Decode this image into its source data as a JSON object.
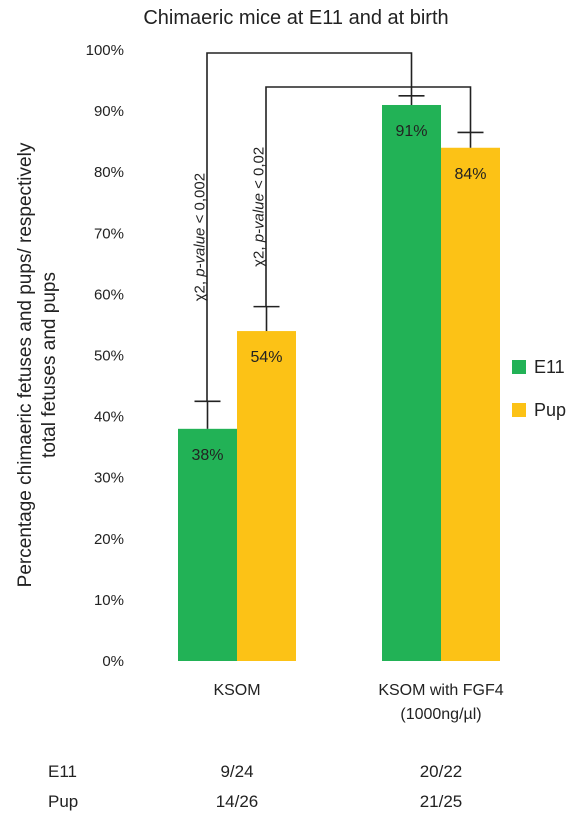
{
  "chart_data": {
    "type": "bar",
    "title": "Chimaeric mice at E11 and at birth",
    "ylabel_line1": "Percentage  chimaeric fetuses and pups/ respectively",
    "ylabel_line2": "total fetuses and pups",
    "ylim": [
      0,
      100
    ],
    "yticks": [
      "0%",
      "10%",
      "20%",
      "30%",
      "40%",
      "50%",
      "60%",
      "70%",
      "80%",
      "90%",
      "100%"
    ],
    "categories": [
      {
        "line1": "KSOM",
        "line2": ""
      },
      {
        "line1": "KSOM with FGF4",
        "line2": "(1000ng/µl)"
      }
    ],
    "series": [
      {
        "name": "E11",
        "color": "#22b256",
        "values": [
          38,
          91
        ],
        "labels": [
          "38%",
          "91%"
        ]
      },
      {
        "name": "Pup",
        "color": "#fcc216",
        "values": [
          54,
          84
        ],
        "labels": [
          "54%",
          "84%"
        ]
      }
    ],
    "error_caps": [
      [
        42.5,
        92.5
      ],
      [
        58,
        86.5
      ]
    ],
    "legend_position": "right",
    "grid": false,
    "significance": [
      {
        "label_prefix": "χ2, ",
        "label_italic": "p-value",
        "label_suffix": " < 0,002"
      },
      {
        "label_prefix": "χ2, ",
        "label_italic": "p-value",
        "label_suffix": " < 0,02"
      }
    ]
  },
  "counts_table": {
    "rows": [
      {
        "label": "E11",
        "values": [
          "9/24",
          "20/22"
        ]
      },
      {
        "label": "Pup",
        "values": [
          "14/26",
          "21/25"
        ]
      }
    ]
  }
}
